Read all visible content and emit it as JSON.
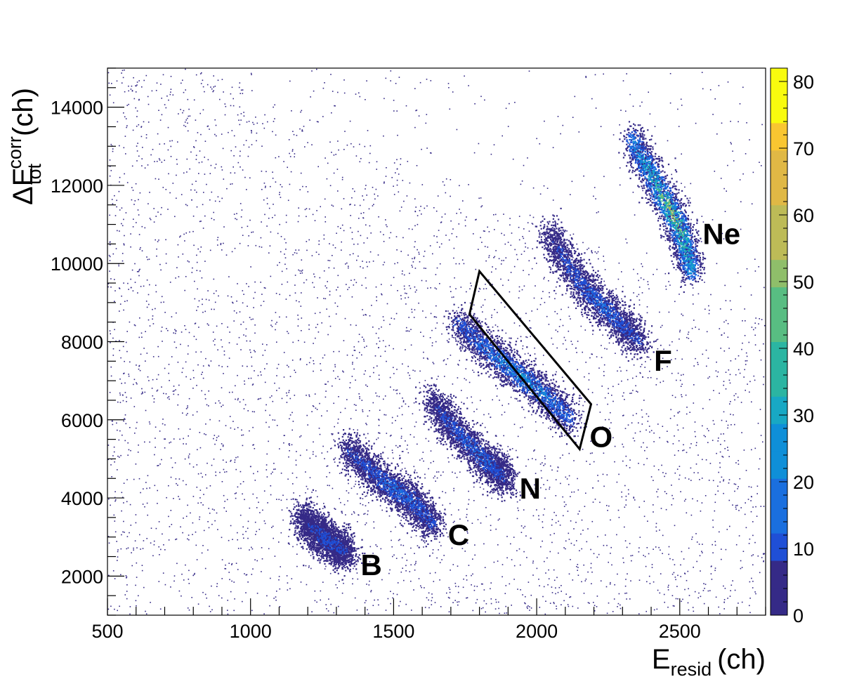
{
  "chart_data": {
    "type": "heatmap",
    "title": "",
    "x_axis": {
      "label_main": "E",
      "label_sub": "resid",
      "label_unit": "(ch)",
      "range": [
        500,
        2800
      ],
      "ticks": [
        500,
        1000,
        1500,
        2000,
        2500
      ],
      "tick_labels": [
        "500",
        "1000",
        "1500",
        "2000",
        "2500"
      ]
    },
    "y_axis": {
      "label_main": "ΔE",
      "label_sup": "corr",
      "label_sub": "tot",
      "label_unit": "(ch)",
      "range": [
        1000,
        15000
      ],
      "ticks": [
        2000,
        4000,
        6000,
        8000,
        10000,
        12000,
        14000
      ],
      "tick_labels": [
        "2000",
        "4000",
        "6000",
        "8000",
        "10000",
        "12000",
        "14000"
      ]
    },
    "z_axis": {
      "range": [
        0,
        82
      ],
      "ticks": [
        0,
        10,
        20,
        30,
        40,
        50,
        60,
        70,
        80
      ],
      "tick_labels": [
        "0",
        "10",
        "20",
        "30",
        "40",
        "50",
        "60",
        "70",
        "80"
      ],
      "palette": [
        "#352a87",
        "#1f4fd6",
        "#1a6fdf",
        "#0f8fd8",
        "#18a8c4",
        "#2bb5a2",
        "#58bd82",
        "#8fbe6a",
        "#bdbb57",
        "#e0b845",
        "#f9c631",
        "#f9fb0e"
      ]
    },
    "ion_groups": [
      {
        "name": "B",
        "ridge": [
          [
            1180,
            3500
          ],
          [
            1260,
            2950
          ],
          [
            1340,
            2600
          ]
        ],
        "peak_counts": 14,
        "label_pos": [
          1385,
          2020
        ]
      },
      {
        "name": "C",
        "ridge": [
          [
            1330,
            5300
          ],
          [
            1450,
            4500
          ],
          [
            1560,
            3950
          ],
          [
            1640,
            3300
          ]
        ],
        "peak_counts": 20,
        "label_pos": [
          1690,
          2800
        ]
      },
      {
        "name": "N",
        "ridge": [
          [
            1630,
            6500
          ],
          [
            1720,
            5700
          ],
          [
            1830,
            4900
          ],
          [
            1890,
            4500
          ]
        ],
        "peak_counts": 18,
        "label_pos": [
          1940,
          3980
        ]
      },
      {
        "name": "O",
        "ridge": [
          [
            1720,
            8500
          ],
          [
            1860,
            7600
          ],
          [
            2000,
            6800
          ],
          [
            2120,
            6000
          ]
        ],
        "peak_counts": 30,
        "label_pos": [
          2185,
          5300
        ]
      },
      {
        "name": "F",
        "ridge": [
          [
            2040,
            10800
          ],
          [
            2150,
            9500
          ],
          [
            2260,
            8700
          ],
          [
            2360,
            8000
          ]
        ],
        "peak_counts": 18,
        "label_pos": [
          2410,
          7250
        ]
      },
      {
        "name": "Ne",
        "ridge": [
          [
            2330,
            13200
          ],
          [
            2420,
            12000
          ],
          [
            2500,
            10900
          ],
          [
            2540,
            9800
          ]
        ],
        "peak_counts": 60,
        "label_pos": [
          2580,
          10500
        ]
      }
    ],
    "gate_polygon": [
      [
        1800,
        9800
      ],
      [
        2190,
        6400
      ],
      [
        2150,
        5250
      ],
      [
        1765,
        8700
      ],
      [
        1800,
        9800
      ]
    ],
    "ion_labels": [
      "B",
      "C",
      "N",
      "O",
      "F",
      "Ne"
    ]
  }
}
